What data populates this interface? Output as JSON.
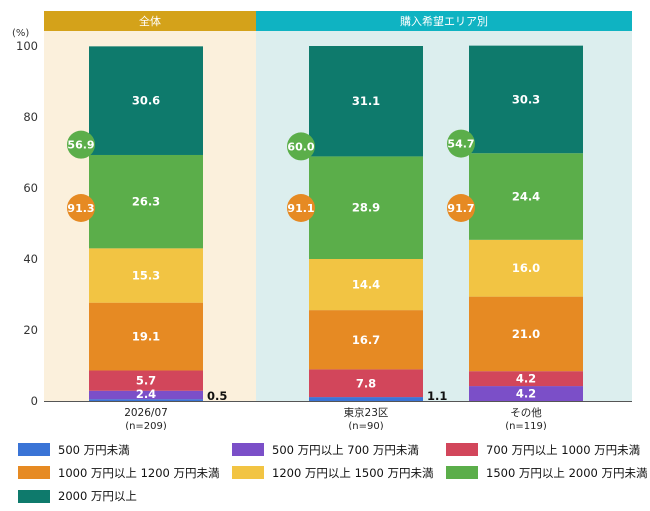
{
  "chart_data": {
    "type": "bar",
    "stacked": true,
    "y_unit_label": "(%)",
    "ylim": [
      0,
      100
    ],
    "yticks": [
      0,
      20,
      40,
      60,
      80,
      100
    ],
    "header": [
      {
        "label": "全体",
        "color": "#D4A21A",
        "band": "#FBF0DC"
      },
      {
        "label": "購入希望エリア別",
        "color": "#0FB3C2",
        "band": "#DCEEEE"
      }
    ],
    "categories": [
      {
        "name": "2026/07",
        "n": "(n=209)"
      },
      {
        "name": "東京23区",
        "n": "(n=90)"
      },
      {
        "name": "その他",
        "n": "(n=119)"
      }
    ],
    "series": [
      {
        "name": "500 万円未満",
        "color": "#3A74D6",
        "values": [
          0.5,
          1.1,
          0.0
        ]
      },
      {
        "name": "500 万円以上 700 万円未満",
        "color": "#7B4FC8",
        "values": [
          2.4,
          0.0,
          4.2
        ]
      },
      {
        "name": "700 万円以上 1000 万円未満",
        "color": "#D2465B",
        "values": [
          5.7,
          7.8,
          4.2
        ]
      },
      {
        "name": "1000 万円以上 1200 万円未満",
        "color": "#E68A23",
        "values": [
          19.1,
          16.7,
          21.0
        ]
      },
      {
        "name": "1200 万円以上 1500 万円未満",
        "color": "#F2C443",
        "values": [
          15.3,
          14.4,
          16.0
        ]
      },
      {
        "name": "1500 万円以上 2000 万円未満",
        "color": "#5BAE4A",
        "values": [
          26.3,
          28.9,
          24.4
        ]
      },
      {
        "name": "2000 万円以上",
        "color": "#0E7A6C",
        "values": [
          30.6,
          31.1,
          30.3
        ]
      }
    ],
    "segment_labels": [
      [
        "0.5",
        "2.4",
        "5.7",
        "19.1",
        "15.3",
        "26.3",
        "30.6"
      ],
      [
        "1.1",
        "",
        "7.8",
        "16.7",
        "14.4",
        "28.9",
        "31.1"
      ],
      [
        "",
        "4.2",
        "4.2",
        "21.0",
        "16.0",
        "24.4",
        "30.3"
      ]
    ],
    "cumulative_badges": [
      {
        "green": "56.9",
        "orange": "91.3"
      },
      {
        "green": "60.0",
        "orange": "91.1"
      },
      {
        "green": "54.7",
        "orange": "91.7"
      }
    ],
    "badge_colors": {
      "green": "#5BAE4A",
      "orange": "#E68A23"
    }
  }
}
